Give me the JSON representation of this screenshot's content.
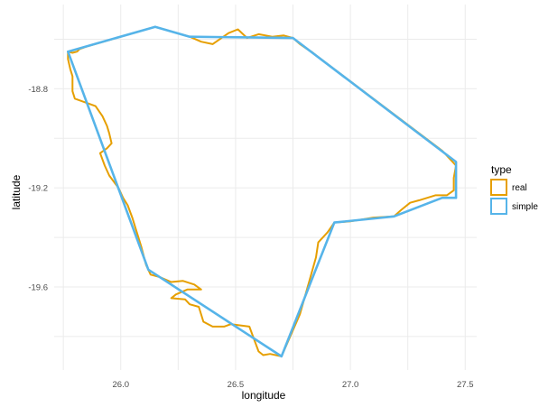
{
  "chart_data": {
    "type": "line",
    "xlabel": "longitude",
    "ylabel": "latitude",
    "xlim": [
      25.71,
      27.55
    ],
    "ylim": [
      -19.935,
      -18.46
    ],
    "x_ticks": [
      26.0,
      26.5,
      27.0,
      27.5
    ],
    "x_tick_labels": [
      "26.0",
      "26.5",
      "27.0",
      "27.5"
    ],
    "y_ticks": [
      -18.8,
      -19.2,
      -19.6
    ],
    "y_tick_labels": [
      "-18.8",
      "-19.2",
      "-19.6"
    ],
    "grid": true,
    "legend": {
      "title": "type",
      "position": "right",
      "entries": [
        "real",
        "simple"
      ]
    },
    "series": [
      {
        "name": "real",
        "color": "#E69F00",
        "points": [
          [
            25.77,
            -18.65
          ],
          [
            25.79,
            -18.655
          ],
          [
            25.81,
            -18.65
          ],
          [
            25.82,
            -18.64
          ],
          [
            25.85,
            -18.63
          ],
          [
            26.15,
            -18.55
          ],
          [
            26.3,
            -18.59
          ],
          [
            26.35,
            -18.61
          ],
          [
            26.4,
            -18.62
          ],
          [
            26.47,
            -18.575
          ],
          [
            26.51,
            -18.56
          ],
          [
            26.55,
            -18.595
          ],
          [
            26.6,
            -18.58
          ],
          [
            26.66,
            -18.59
          ],
          [
            26.71,
            -18.585
          ],
          [
            26.75,
            -18.595
          ],
          [
            26.78,
            -18.62
          ],
          [
            26.82,
            -18.645
          ],
          [
            26.83,
            -18.65
          ],
          [
            26.85,
            -18.665
          ],
          [
            27.4,
            -19.05
          ],
          [
            27.44,
            -19.09
          ],
          [
            27.46,
            -19.11
          ],
          [
            27.45,
            -19.16
          ],
          [
            27.45,
            -19.21
          ],
          [
            27.42,
            -19.23
          ],
          [
            27.37,
            -19.23
          ],
          [
            27.3,
            -19.25
          ],
          [
            27.26,
            -19.26
          ],
          [
            27.22,
            -19.29
          ],
          [
            27.19,
            -19.315
          ],
          [
            27.1,
            -19.32
          ],
          [
            27.0,
            -19.335
          ],
          [
            26.93,
            -19.34
          ],
          [
            26.9,
            -19.38
          ],
          [
            26.88,
            -19.4
          ],
          [
            26.86,
            -19.42
          ],
          [
            26.85,
            -19.48
          ],
          [
            26.82,
            -19.58
          ],
          [
            26.78,
            -19.71
          ],
          [
            26.7,
            -19.88
          ],
          [
            26.65,
            -19.87
          ],
          [
            26.62,
            -19.875
          ],
          [
            26.6,
            -19.86
          ],
          [
            26.58,
            -19.81
          ],
          [
            26.56,
            -19.76
          ],
          [
            26.48,
            -19.75
          ],
          [
            26.45,
            -19.76
          ],
          [
            26.4,
            -19.76
          ],
          [
            26.36,
            -19.74
          ],
          [
            26.34,
            -19.68
          ],
          [
            26.3,
            -19.67
          ],
          [
            26.28,
            -19.65
          ],
          [
            26.22,
            -19.645
          ],
          [
            26.24,
            -19.63
          ],
          [
            26.29,
            -19.61
          ],
          [
            26.35,
            -19.61
          ],
          [
            26.32,
            -19.59
          ],
          [
            26.27,
            -19.575
          ],
          [
            26.22,
            -19.58
          ],
          [
            26.17,
            -19.56
          ],
          [
            26.13,
            -19.55
          ],
          [
            26.11,
            -19.51
          ],
          [
            26.09,
            -19.44
          ],
          [
            26.07,
            -19.38
          ],
          [
            26.05,
            -19.32
          ],
          [
            26.03,
            -19.27
          ],
          [
            26.01,
            -19.24
          ],
          [
            25.99,
            -19.2
          ],
          [
            25.95,
            -19.15
          ],
          [
            25.93,
            -19.11
          ],
          [
            25.91,
            -19.06
          ],
          [
            25.94,
            -19.04
          ],
          [
            25.96,
            -19.02
          ],
          [
            25.95,
            -18.98
          ],
          [
            25.94,
            -18.95
          ],
          [
            25.92,
            -18.91
          ],
          [
            25.89,
            -18.87
          ],
          [
            25.86,
            -18.86
          ],
          [
            25.83,
            -18.85
          ],
          [
            25.8,
            -18.84
          ],
          [
            25.79,
            -18.81
          ],
          [
            25.79,
            -18.78
          ],
          [
            25.79,
            -18.75
          ],
          [
            25.78,
            -18.72
          ],
          [
            25.77,
            -18.68
          ],
          [
            25.77,
            -18.65
          ]
        ]
      },
      {
        "name": "simple",
        "color": "#56B4E9",
        "points": [
          [
            25.77,
            -18.65
          ],
          [
            26.15,
            -18.55
          ],
          [
            26.3,
            -18.59
          ],
          [
            26.75,
            -18.595
          ],
          [
            27.46,
            -19.095
          ],
          [
            27.46,
            -19.24
          ],
          [
            27.4,
            -19.24
          ],
          [
            27.19,
            -19.315
          ],
          [
            26.93,
            -19.34
          ],
          [
            26.7,
            -19.88
          ],
          [
            26.12,
            -19.53
          ],
          [
            25.77,
            -18.65
          ]
        ]
      }
    ]
  }
}
